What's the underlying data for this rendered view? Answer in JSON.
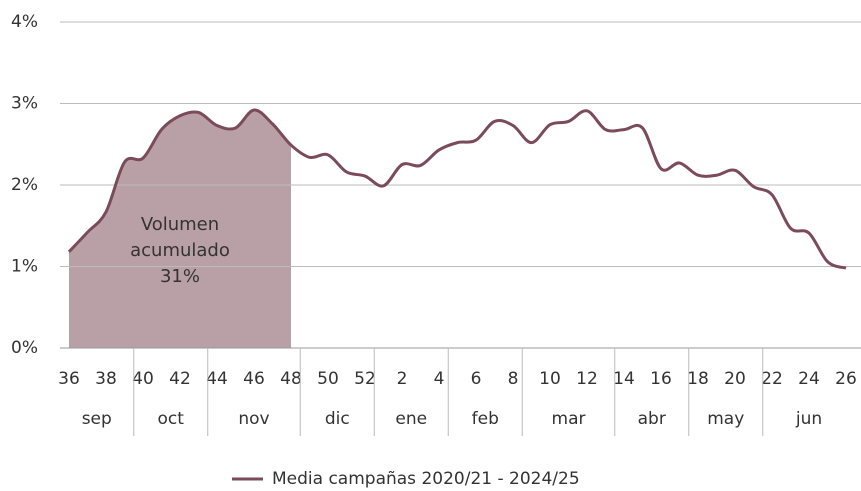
{
  "chart_data": {
    "type": "line",
    "categories": [
      "36",
      null,
      "38",
      null,
      "40",
      null,
      "42",
      null,
      "44",
      null,
      "46",
      null,
      "48",
      null,
      "50",
      null,
      "52",
      null,
      "2",
      null,
      "4",
      null,
      "6",
      null,
      "8",
      null,
      "10",
      null,
      "12",
      null,
      "14",
      null,
      "16",
      null,
      "18",
      null,
      "20",
      null,
      "22",
      null,
      "24",
      null,
      "26"
    ],
    "groups": [
      {
        "label": "sep",
        "count": 4
      },
      {
        "label": "oct",
        "count": 4
      },
      {
        "label": "nov",
        "count": 5
      },
      {
        "label": "dic",
        "count": 4
      },
      {
        "label": "ene",
        "count": 4
      },
      {
        "label": "feb",
        "count": 4
      },
      {
        "label": "mar",
        "count": 5
      },
      {
        "label": "abr",
        "count": 4
      },
      {
        "label": "may",
        "count": 4
      },
      {
        "label": "jun",
        "count": 5
      }
    ],
    "series": [
      {
        "name": "Media campañas 2020/21 - 2024/25",
        "color": "#7b4b5c",
        "values": [
          1.18,
          1.42,
          1.67,
          2.28,
          2.33,
          2.68,
          2.85,
          2.89,
          2.73,
          2.7,
          2.92,
          2.75,
          2.49,
          2.34,
          2.37,
          2.16,
          2.11,
          1.99,
          2.25,
          2.24,
          2.43,
          2.52,
          2.55,
          2.78,
          2.73,
          2.52,
          2.74,
          2.78,
          2.91,
          2.68,
          2.68,
          2.7,
          2.2,
          2.27,
          2.12,
          2.12,
          2.18,
          1.98,
          1.88,
          1.47,
          1.41,
          1.06,
          0.98
        ]
      }
    ],
    "highlight": {
      "text": [
        "Volumen",
        "acumulado",
        "31%"
      ],
      "from": "36",
      "to": "48",
      "color": "#b9a0a6"
    },
    "ylim": [
      0,
      4
    ],
    "yticks": [
      {
        "value": 0,
        "label": "0%"
      },
      {
        "value": 1,
        "label": "1%"
      },
      {
        "value": 2,
        "label": "2%"
      },
      {
        "value": 3,
        "label": "3%"
      },
      {
        "value": 4,
        "label": "4%"
      }
    ],
    "grid": true,
    "legend": "bottom"
  }
}
